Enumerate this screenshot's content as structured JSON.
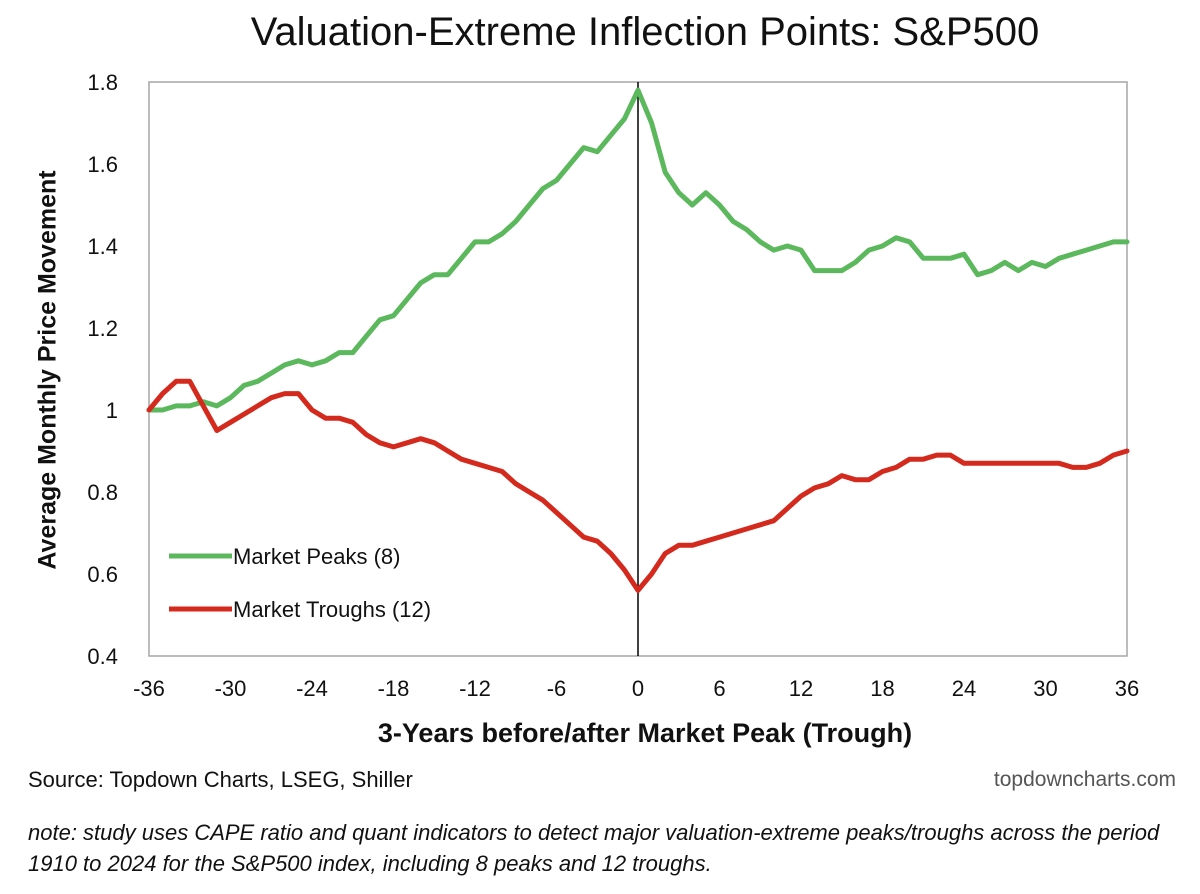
{
  "chart_data": {
    "type": "line",
    "title": "Valuation-Extreme Inflection Points: S&P500",
    "xlabel": "3-Years before/after Market Peak (Trough)",
    "ylabel": "Average Monthly Price Movement",
    "xlim": [
      -36,
      36
    ],
    "ylim": [
      0.4,
      1.8
    ],
    "x_ticks": [
      -36,
      -30,
      -24,
      -18,
      -12,
      -6,
      0,
      6,
      12,
      18,
      24,
      30,
      36
    ],
    "y_ticks": [
      0.4,
      0.6,
      0.8,
      1,
      1.2,
      1.4,
      1.6,
      1.8
    ],
    "y_tick_labels": [
      "0.4",
      "0.6",
      "0.8",
      "1",
      "1.2",
      "1.4",
      "1.6",
      "1.8"
    ],
    "vertical_line_at": 0,
    "legend_position": "bottom-left",
    "grid": false,
    "x": [
      -36,
      -35,
      -34,
      -33,
      -32,
      -31,
      -30,
      -29,
      -28,
      -27,
      -26,
      -25,
      -24,
      -23,
      -22,
      -21,
      -20,
      -19,
      -18,
      -17,
      -16,
      -15,
      -14,
      -13,
      -12,
      -11,
      -10,
      -9,
      -8,
      -7,
      -6,
      -5,
      -4,
      -3,
      -2,
      -1,
      0,
      1,
      2,
      3,
      4,
      5,
      6,
      7,
      8,
      9,
      10,
      11,
      12,
      13,
      14,
      15,
      16,
      17,
      18,
      19,
      20,
      21,
      22,
      23,
      24,
      25,
      26,
      27,
      28,
      29,
      30,
      31,
      32,
      33,
      34,
      35,
      36
    ],
    "series": [
      {
        "name": "Market Peaks (8)",
        "color": "#5cb85c",
        "values": [
          1.0,
          1.0,
          1.01,
          1.01,
          1.02,
          1.01,
          1.03,
          1.06,
          1.07,
          1.09,
          1.11,
          1.12,
          1.11,
          1.12,
          1.14,
          1.14,
          1.18,
          1.22,
          1.23,
          1.27,
          1.31,
          1.33,
          1.33,
          1.37,
          1.41,
          1.41,
          1.43,
          1.46,
          1.5,
          1.54,
          1.56,
          1.6,
          1.64,
          1.63,
          1.67,
          1.71,
          1.78,
          1.7,
          1.58,
          1.53,
          1.5,
          1.53,
          1.5,
          1.46,
          1.44,
          1.41,
          1.39,
          1.4,
          1.39,
          1.34,
          1.34,
          1.34,
          1.36,
          1.39,
          1.4,
          1.42,
          1.41,
          1.37,
          1.37,
          1.37,
          1.38,
          1.33,
          1.34,
          1.36,
          1.34,
          1.36,
          1.35,
          1.37,
          1.38,
          1.39,
          1.4,
          1.41,
          1.41
        ]
      },
      {
        "name": "Market Troughs (12)",
        "color": "#d42a1e",
        "values": [
          1.0,
          1.04,
          1.07,
          1.07,
          1.01,
          0.95,
          0.97,
          0.99,
          1.01,
          1.03,
          1.04,
          1.04,
          1.0,
          0.98,
          0.98,
          0.97,
          0.94,
          0.92,
          0.91,
          0.92,
          0.93,
          0.92,
          0.9,
          0.88,
          0.87,
          0.86,
          0.85,
          0.82,
          0.8,
          0.78,
          0.75,
          0.72,
          0.69,
          0.68,
          0.65,
          0.61,
          0.56,
          0.6,
          0.65,
          0.67,
          0.67,
          0.68,
          0.69,
          0.7,
          0.71,
          0.72,
          0.73,
          0.76,
          0.79,
          0.81,
          0.82,
          0.84,
          0.83,
          0.83,
          0.85,
          0.86,
          0.88,
          0.88,
          0.89,
          0.89,
          0.87,
          0.87,
          0.87,
          0.87,
          0.87,
          0.87,
          0.87,
          0.87,
          0.86,
          0.86,
          0.87,
          0.89,
          0.9
        ]
      }
    ]
  },
  "source": "Source: Topdown Charts, LSEG, Shiller",
  "watermark": "topdowncharts.com",
  "note": "note: study uses CAPE ratio and quant indicators to detect major valuation-extreme peaks/troughs across the period 1910 to 2024 for the S&P500 index, including 8 peaks and 12 troughs."
}
